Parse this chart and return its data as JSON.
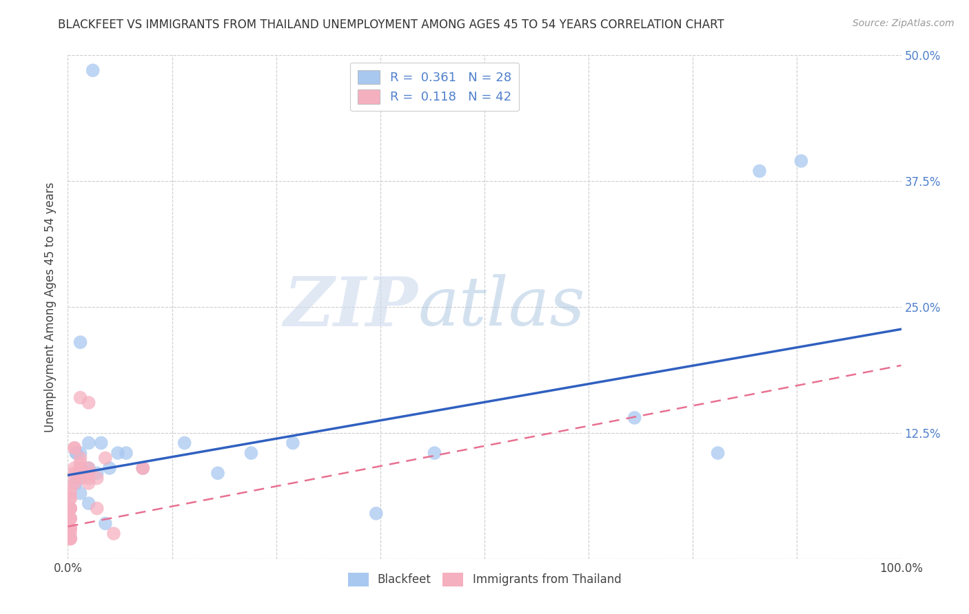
{
  "title": "BLACKFEET VS IMMIGRANTS FROM THAILAND UNEMPLOYMENT AMONG AGES 45 TO 54 YEARS CORRELATION CHART",
  "source": "Source: ZipAtlas.com",
  "ylabel": "Unemployment Among Ages 45 to 54 years",
  "xlim": [
    0,
    1.0
  ],
  "ylim": [
    0,
    0.5
  ],
  "xticks": [
    0.0,
    0.125,
    0.25,
    0.375,
    0.5,
    0.625,
    0.75,
    0.875,
    1.0
  ],
  "xticklabels": [
    "0.0%",
    "",
    "",
    "",
    "",
    "",
    "",
    "",
    "100.0%"
  ],
  "yticks": [
    0.0,
    0.125,
    0.25,
    0.375,
    0.5
  ],
  "yticklabels": [
    "",
    "12.5%",
    "25.0%",
    "37.5%",
    "50.0%"
  ],
  "watermark_zip": "ZIP",
  "watermark_atlas": "atlas",
  "legend_R1": "R =  0.361",
  "legend_N1": "N = 28",
  "legend_R2": "R =  0.118",
  "legend_N2": "N = 42",
  "color_blue": "#a8c8f0",
  "color_pink": "#f5b0c0",
  "line_blue": "#3060c0",
  "line_pink": "#e87090",
  "blackfeet_x": [
    0.03,
    0.015,
    0.06,
    0.04,
    0.025,
    0.01,
    0.015,
    0.025,
    0.05,
    0.07,
    0.01,
    0.015,
    0.035,
    0.14,
    0.18,
    0.27,
    0.37,
    0.44,
    0.68,
    0.78,
    0.83,
    0.88,
    0.015,
    0.025,
    0.045,
    0.09,
    0.22,
    0.01
  ],
  "blackfeet_y": [
    0.485,
    0.215,
    0.105,
    0.115,
    0.09,
    0.105,
    0.085,
    0.115,
    0.09,
    0.105,
    0.075,
    0.065,
    0.085,
    0.115,
    0.085,
    0.115,
    0.045,
    0.105,
    0.14,
    0.105,
    0.385,
    0.395,
    0.105,
    0.055,
    0.035,
    0.09,
    0.105,
    0.105
  ],
  "thailand_x": [
    0.003,
    0.003,
    0.003,
    0.003,
    0.003,
    0.003,
    0.003,
    0.003,
    0.003,
    0.003,
    0.003,
    0.003,
    0.003,
    0.003,
    0.003,
    0.003,
    0.003,
    0.003,
    0.003,
    0.008,
    0.008,
    0.008,
    0.008,
    0.008,
    0.008,
    0.015,
    0.015,
    0.015,
    0.015,
    0.015,
    0.015,
    0.025,
    0.025,
    0.025,
    0.025,
    0.025,
    0.035,
    0.035,
    0.045,
    0.055,
    0.09,
    0.09
  ],
  "thailand_y": [
    0.02,
    0.02,
    0.02,
    0.02,
    0.025,
    0.03,
    0.03,
    0.03,
    0.04,
    0.04,
    0.04,
    0.05,
    0.05,
    0.05,
    0.05,
    0.06,
    0.06,
    0.065,
    0.07,
    0.075,
    0.08,
    0.085,
    0.09,
    0.11,
    0.11,
    0.08,
    0.085,
    0.09,
    0.095,
    0.1,
    0.16,
    0.075,
    0.08,
    0.085,
    0.09,
    0.155,
    0.05,
    0.08,
    0.1,
    0.025,
    0.09,
    0.09
  ],
  "blue_line_x0": 0.0,
  "blue_line_y0": 0.083,
  "blue_line_x1": 1.0,
  "blue_line_y1": 0.228,
  "pink_line_x0": 0.0,
  "pink_line_y0": 0.032,
  "pink_line_x1": 1.0,
  "pink_line_y1": 0.192
}
